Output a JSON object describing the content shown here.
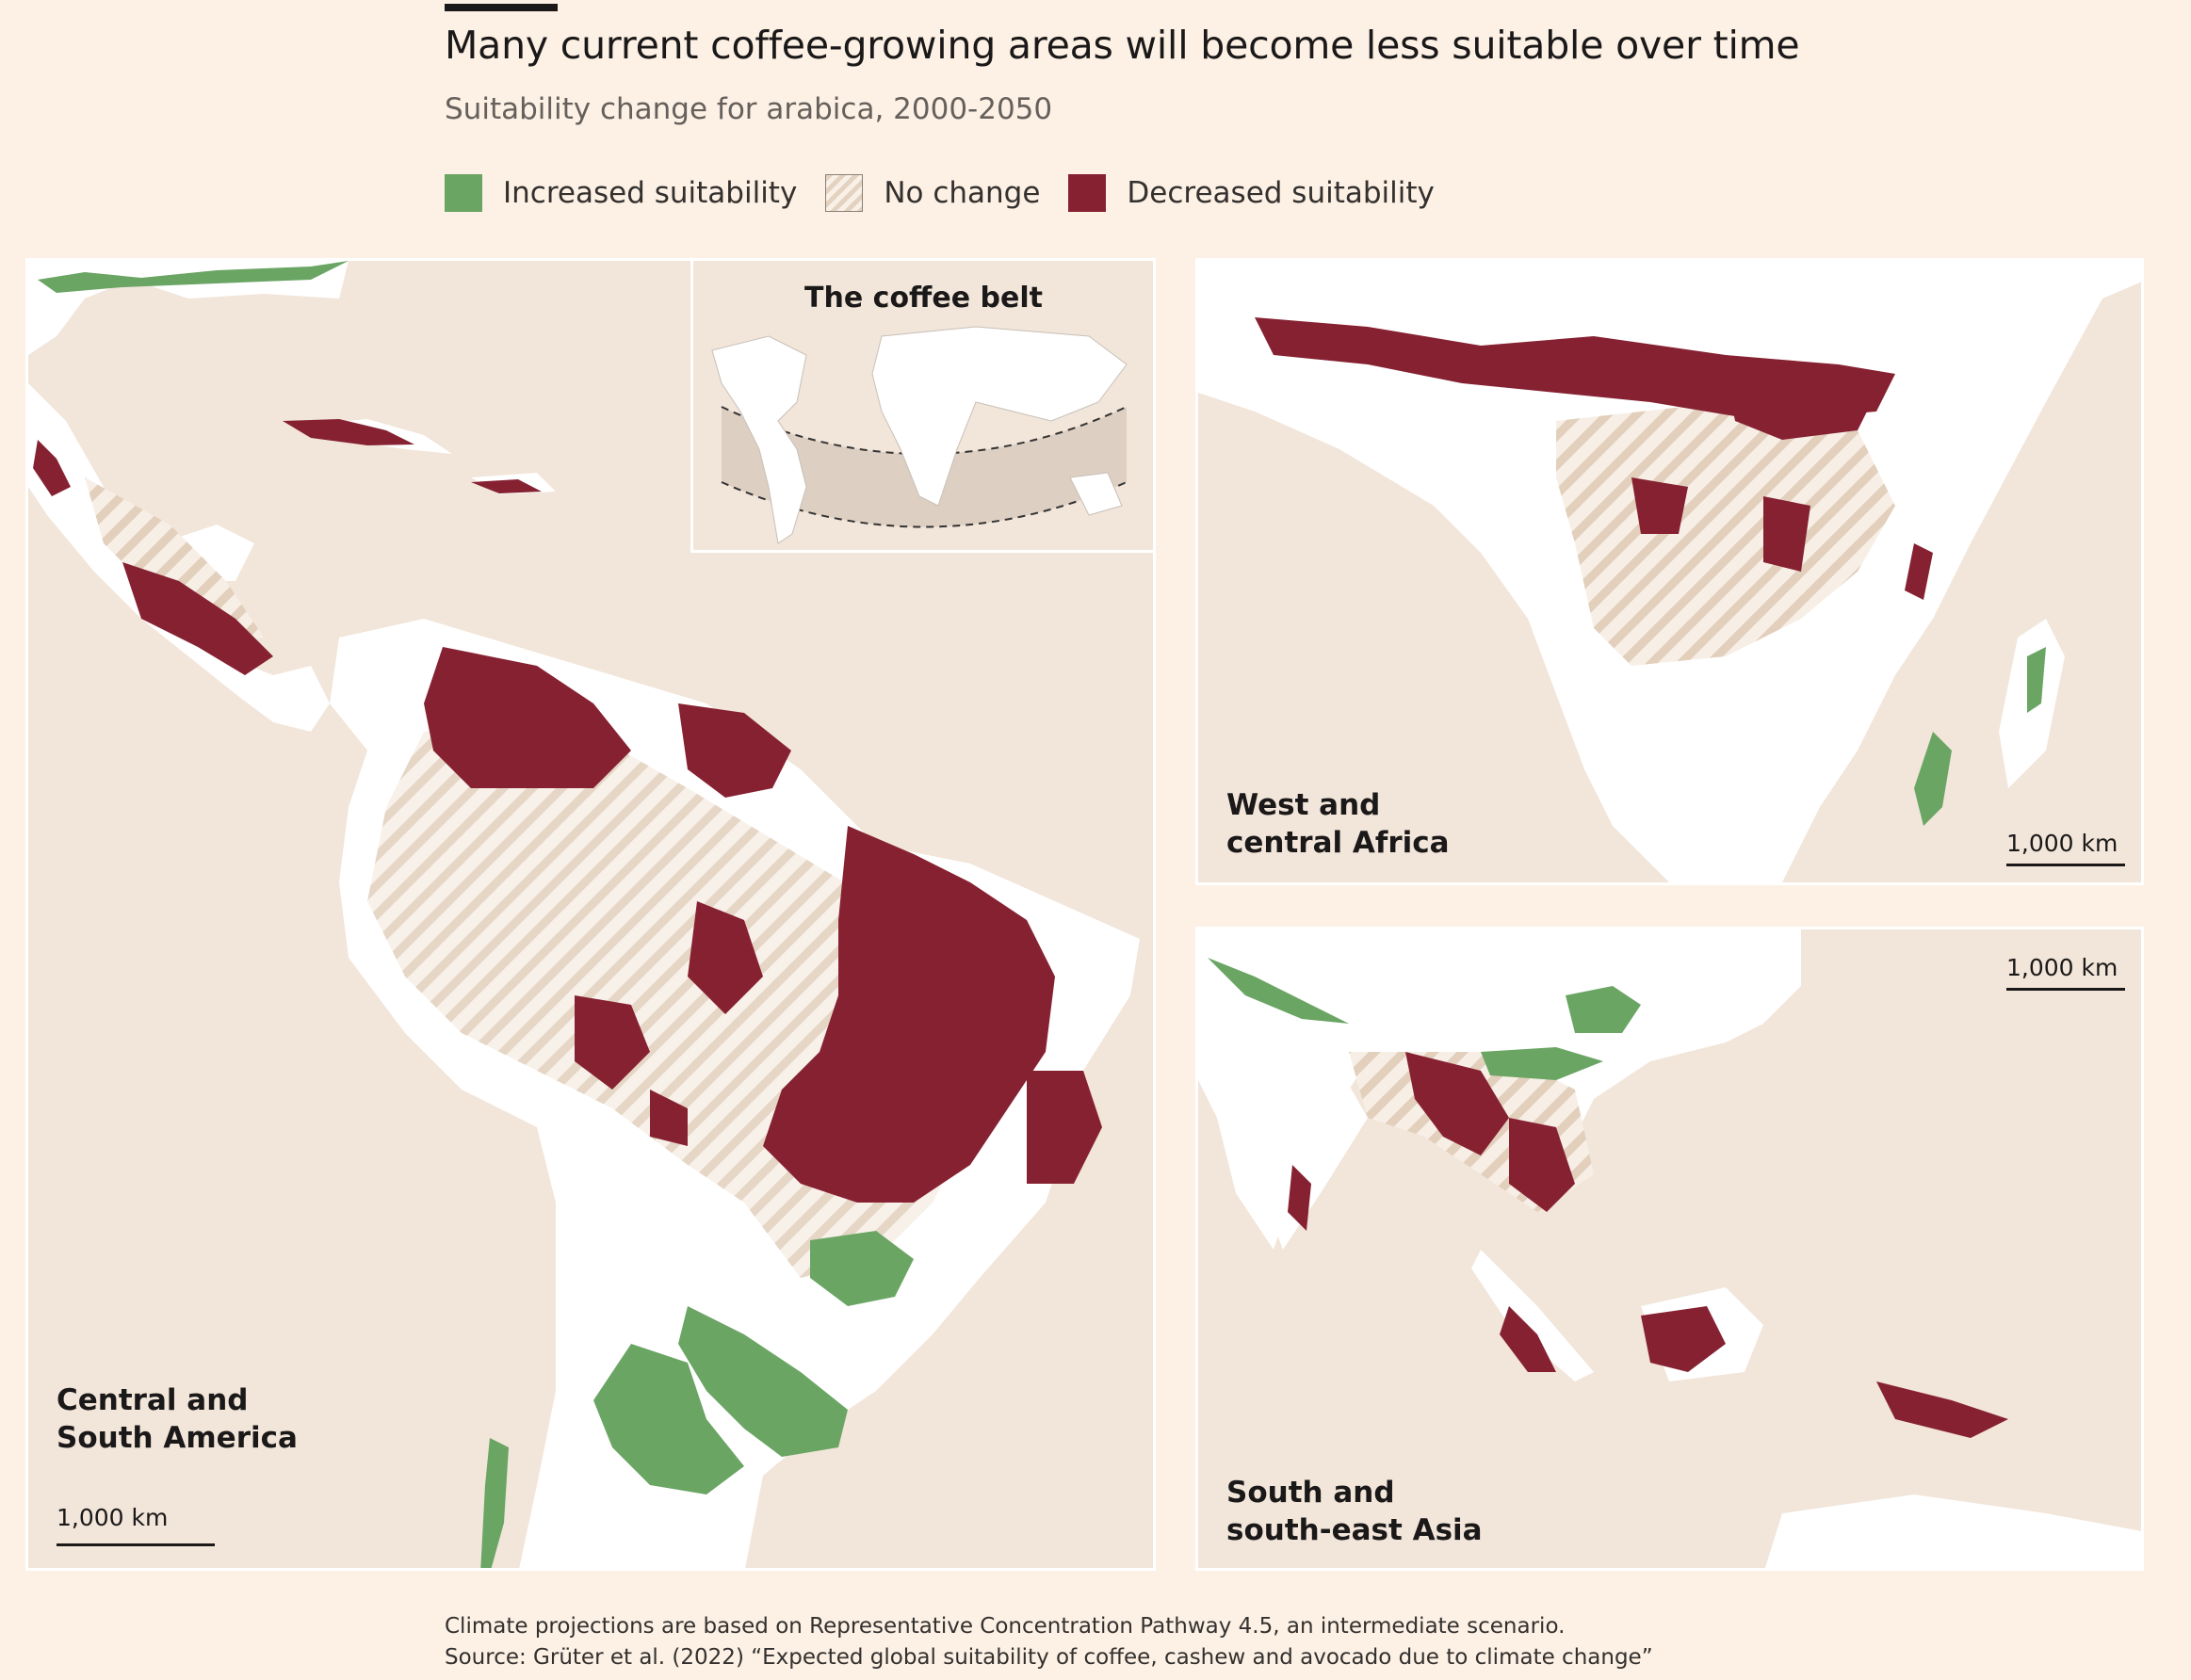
{
  "header": {
    "title": "Many current coffee-growing areas will become less suitable over time",
    "subtitle": "Suitability change for arabica, 2000-2050"
  },
  "legend": {
    "increased": "Increased suitability",
    "no_change": "No change",
    "decreased": "Decreased suitability"
  },
  "colors": {
    "increased": "#6aa564",
    "decreased": "#862132",
    "no_change_stripe": "#e4d2c0",
    "land": "#ffffff",
    "sea": "#f2e5d9",
    "background": "#fdf1e5"
  },
  "panels": {
    "americas": {
      "label_line1": "Central and",
      "label_line2": "South America",
      "scale": "1,000 km"
    },
    "inset": {
      "title": "The coffee belt"
    },
    "africa": {
      "label_line1": "West and",
      "label_line2": "central Africa",
      "scale": "1,000 km"
    },
    "asia": {
      "label_line1": "South and",
      "label_line2": "south-east Asia",
      "scale": "1,000 km"
    }
  },
  "footer": {
    "note": "Climate projections are based on Representative Concentration Pathway 4.5, an intermediate scenario.",
    "source": "Source: Grüter et al. (2022) “Expected global suitability of coffee, cashew and avocado due to climate change”"
  }
}
